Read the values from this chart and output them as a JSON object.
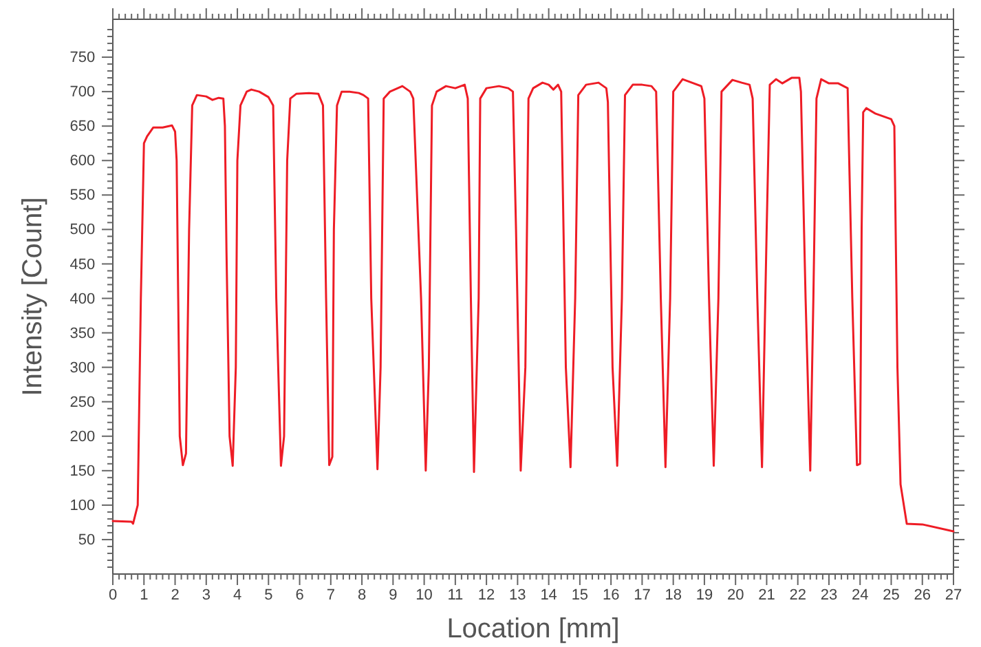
{
  "chart_data": {
    "type": "line",
    "xlabel": "Location [mm]",
    "ylabel": "Intensity [Count]",
    "xlim": [
      0,
      27
    ],
    "ylim": [
      0,
      805
    ],
    "marker": "none",
    "line_style": "solid",
    "xticks": [
      0,
      {
        "value": 0.2,
        "label": null
      },
      {
        "value": 0.4,
        "label": null
      },
      {
        "value": 0.6,
        "label": null
      },
      {
        "value": 0.8,
        "label": null
      },
      1,
      {
        "value": 1.2,
        "label": null
      },
      {
        "value": 1.4,
        "label": null
      },
      {
        "value": 1.6,
        "label": null
      },
      {
        "value": 1.8,
        "label": null
      },
      2,
      {
        "value": 2.2,
        "label": null
      },
      {
        "value": 2.4,
        "label": null
      },
      {
        "value": 2.6,
        "label": null
      },
      {
        "value": 2.8,
        "label": null
      },
      3,
      {
        "value": 3.2,
        "label": null
      },
      {
        "value": 3.4,
        "label": null
      },
      {
        "value": 3.6,
        "label": null
      },
      {
        "value": 3.8,
        "label": null
      },
      4,
      {
        "value": 4.2,
        "label": null
      },
      {
        "value": 4.4,
        "label": null
      },
      {
        "value": 4.6,
        "label": null
      },
      {
        "value": 4.8,
        "label": null
      },
      5,
      {
        "value": 5.2,
        "label": null
      },
      {
        "value": 5.4,
        "label": null
      },
      {
        "value": 5.6,
        "label": null
      },
      {
        "value": 5.8,
        "label": null
      },
      6,
      {
        "value": 6.2,
        "label": null
      },
      {
        "value": 6.4,
        "label": null
      },
      {
        "value": 6.6,
        "label": null
      },
      {
        "value": 6.8,
        "label": null
      },
      7,
      {
        "value": 7.2,
        "label": null
      },
      {
        "value": 7.4,
        "label": null
      },
      {
        "value": 7.6,
        "label": null
      },
      {
        "value": 7.8,
        "label": null
      },
      8,
      {
        "value": 8.2,
        "label": null
      },
      {
        "value": 8.4,
        "label": null
      },
      {
        "value": 8.6,
        "label": null
      },
      {
        "value": 8.8,
        "label": null
      },
      9,
      {
        "value": 9.2,
        "label": null
      },
      {
        "value": 9.4,
        "label": null
      },
      {
        "value": 9.6,
        "label": null
      },
      {
        "value": 9.8,
        "label": null
      },
      10,
      {
        "value": 10.2,
        "label": null
      },
      {
        "value": 10.4,
        "label": null
      },
      {
        "value": 10.6,
        "label": null
      },
      {
        "value": 10.8,
        "label": null
      },
      11,
      {
        "value": 11.2,
        "label": null
      },
      {
        "value": 11.4,
        "label": null
      },
      {
        "value": 11.6,
        "label": null
      },
      {
        "value": 11.8,
        "label": null
      },
      12,
      {
        "value": 12.2,
        "label": null
      },
      {
        "value": 12.4,
        "label": null
      },
      {
        "value": 12.6,
        "label": null
      },
      {
        "value": 12.8,
        "label": null
      },
      13,
      {
        "value": 13.2,
        "label": null
      },
      {
        "value": 13.4,
        "label": null
      },
      {
        "value": 13.6,
        "label": null
      },
      {
        "value": 13.8,
        "label": null
      },
      14,
      {
        "value": 14.2,
        "label": null
      },
      {
        "value": 14.4,
        "label": null
      },
      {
        "value": 14.6,
        "label": null
      },
      {
        "value": 14.8,
        "label": null
      },
      15,
      {
        "value": 15.2,
        "label": null
      },
      {
        "value": 15.4,
        "label": null
      },
      {
        "value": 15.6,
        "label": null
      },
      {
        "value": 15.8,
        "label": null
      },
      16,
      {
        "value": 16.2,
        "label": null
      },
      {
        "value": 16.4,
        "label": null
      },
      {
        "value": 16.6,
        "label": null
      },
      {
        "value": 16.8,
        "label": null
      },
      17,
      {
        "value": 17.2,
        "label": null
      },
      {
        "value": 17.4,
        "label": null
      },
      {
        "value": 17.6,
        "label": null
      },
      {
        "value": 17.8,
        "label": null
      },
      18,
      {
        "value": 18.2,
        "label": null
      },
      {
        "value": 18.4,
        "label": null
      },
      {
        "value": 18.6,
        "label": null
      },
      {
        "value": 18.8,
        "label": null
      },
      19,
      {
        "value": 19.2,
        "label": null
      },
      {
        "value": 19.4,
        "label": null
      },
      {
        "value": 19.6,
        "label": null
      },
      {
        "value": 19.8,
        "label": null
      },
      20,
      {
        "value": 20.2,
        "label": null
      },
      {
        "value": 20.4,
        "label": null
      },
      {
        "value": 20.6,
        "label": null
      },
      {
        "value": 20.8,
        "label": null
      },
      21,
      {
        "value": 21.2,
        "label": null
      },
      {
        "value": 21.4,
        "label": null
      },
      {
        "value": 21.6,
        "label": null
      },
      {
        "value": 21.8,
        "label": null
      },
      22,
      {
        "value": 22.2,
        "label": null
      },
      {
        "value": 22.4,
        "label": null
      },
      {
        "value": 22.6,
        "label": null
      },
      {
        "value": 22.8,
        "label": null
      },
      23,
      {
        "value": 23.2,
        "label": null
      },
      {
        "value": 23.4,
        "label": null
      },
      {
        "value": 23.6,
        "label": null
      },
      {
        "value": 23.8,
        "label": null
      },
      24,
      {
        "value": 24.2,
        "label": null
      },
      {
        "value": 24.4,
        "label": null
      },
      {
        "value": 24.6,
        "label": null
      },
      {
        "value": 24.8,
        "label": null
      },
      25,
      {
        "value": 25.2,
        "label": null
      },
      {
        "value": 25.4,
        "label": null
      },
      {
        "value": 25.6,
        "label": null
      },
      {
        "value": 25.8,
        "label": null
      },
      26,
      {
        "value": 26.2,
        "label": null
      },
      {
        "value": 26.4,
        "label": null
      },
      {
        "value": 26.6,
        "label": null
      },
      {
        "value": 26.8,
        "label": null
      },
      27
    ],
    "yticks": [
      {
        "value": 10,
        "label": null
      },
      {
        "value": 20,
        "label": null
      },
      {
        "value": 30,
        "label": null
      },
      {
        "value": 40,
        "label": null
      },
      50,
      {
        "value": 60,
        "label": null
      },
      {
        "value": 70,
        "label": null
      },
      {
        "value": 80,
        "label": null
      },
      {
        "value": 90,
        "label": null
      },
      100,
      {
        "value": 110,
        "label": null
      },
      {
        "value": 120,
        "label": null
      },
      {
        "value": 130,
        "label": null
      },
      {
        "value": 140,
        "label": null
      },
      150,
      {
        "value": 160,
        "label": null
      },
      {
        "value": 170,
        "label": null
      },
      {
        "value": 180,
        "label": null
      },
      {
        "value": 190,
        "label": null
      },
      200,
      {
        "value": 210,
        "label": null
      },
      {
        "value": 220,
        "label": null
      },
      {
        "value": 230,
        "label": null
      },
      {
        "value": 240,
        "label": null
      },
      250,
      {
        "value": 260,
        "label": null
      },
      {
        "value": 270,
        "label": null
      },
      {
        "value": 280,
        "label": null
      },
      {
        "value": 290,
        "label": null
      },
      300,
      {
        "value": 310,
        "label": null
      },
      {
        "value": 320,
        "label": null
      },
      {
        "value": 330,
        "label": null
      },
      {
        "value": 340,
        "label": null
      },
      350,
      {
        "value": 360,
        "label": null
      },
      {
        "value": 370,
        "label": null
      },
      {
        "value": 380,
        "label": null
      },
      {
        "value": 390,
        "label": null
      },
      400,
      {
        "value": 410,
        "label": null
      },
      {
        "value": 420,
        "label": null
      },
      {
        "value": 430,
        "label": null
      },
      {
        "value": 440,
        "label": null
      },
      450,
      {
        "value": 460,
        "label": null
      },
      {
        "value": 470,
        "label": null
      },
      {
        "value": 480,
        "label": null
      },
      {
        "value": 490,
        "label": null
      },
      500,
      {
        "value": 510,
        "label": null
      },
      {
        "value": 520,
        "label": null
      },
      {
        "value": 530,
        "label": null
      },
      {
        "value": 540,
        "label": null
      },
      550,
      {
        "value": 560,
        "label": null
      },
      {
        "value": 570,
        "label": null
      },
      {
        "value": 580,
        "label": null
      },
      {
        "value": 590,
        "label": null
      },
      600,
      {
        "value": 610,
        "label": null
      },
      {
        "value": 620,
        "label": null
      },
      {
        "value": 630,
        "label": null
      },
      {
        "value": 640,
        "label": null
      },
      650,
      {
        "value": 660,
        "label": null
      },
      {
        "value": 670,
        "label": null
      },
      {
        "value": 680,
        "label": null
      },
      {
        "value": 690,
        "label": null
      },
      700,
      {
        "value": 710,
        "label": null
      },
      {
        "value": 720,
        "label": null
      },
      {
        "value": 730,
        "label": null
      },
      {
        "value": 740,
        "label": null
      },
      750,
      {
        "value": 760,
        "label": null
      },
      {
        "value": 770,
        "label": null
      },
      {
        "value": 780,
        "label": null
      },
      {
        "value": 790,
        "label": null
      }
    ],
    "series": [
      {
        "color": "#ee1c25",
        "x": [
          0,
          0.6,
          0.65,
          0.8,
          0.9,
          1.0,
          1.1,
          1.3,
          1.6,
          1.9,
          2.0,
          2.05,
          2.1,
          2.15,
          2.25,
          2.35,
          2.45,
          2.55,
          2.7,
          3.0,
          3.2,
          3.4,
          3.55,
          3.6,
          3.65,
          3.75,
          3.85,
          3.95,
          4.0,
          4.1,
          4.3,
          4.45,
          4.7,
          5.0,
          5.15,
          5.25,
          5.4,
          5.5,
          5.6,
          5.7,
          5.9,
          6.3,
          6.6,
          6.75,
          6.85,
          6.95,
          7.05,
          7.1,
          7.2,
          7.35,
          7.6,
          7.9,
          8.05,
          8.2,
          8.3,
          8.5,
          8.6,
          8.7,
          8.9,
          9.3,
          9.55,
          9.65,
          9.9,
          10.05,
          10.15,
          10.25,
          10.4,
          10.7,
          11.0,
          11.3,
          11.4,
          11.5,
          11.6,
          11.75,
          11.8,
          12.0,
          12.4,
          12.7,
          12.85,
          12.95,
          13.1,
          13.25,
          13.35,
          13.5,
          13.8,
          14.0,
          14.15,
          14.3,
          14.4,
          14.55,
          14.7,
          14.85,
          14.95,
          15.2,
          15.6,
          15.85,
          15.9,
          16.05,
          16.2,
          16.35,
          16.45,
          16.7,
          17.0,
          17.3,
          17.45,
          17.6,
          17.75,
          17.9,
          18.0,
          18.3,
          18.6,
          18.9,
          19.0,
          19.15,
          19.3,
          19.45,
          19.55,
          19.9,
          20.2,
          20.45,
          20.55,
          20.7,
          20.85,
          21.0,
          21.1,
          21.3,
          21.5,
          21.8,
          22.05,
          22.1,
          22.25,
          22.4,
          22.5,
          22.6,
          22.75,
          23.0,
          23.3,
          23.6,
          23.75,
          23.9,
          24.0,
          24.05,
          24.1,
          24.2,
          24.5,
          25.0,
          25.1,
          25.2,
          25.3,
          25.5,
          26.0,
          27.0
        ],
        "values": [
          77,
          76,
          73,
          100,
          400,
          625,
          635,
          648,
          648,
          651,
          642,
          600,
          400,
          200,
          158,
          175,
          500,
          680,
          695,
          693,
          688,
          691,
          690,
          650,
          470,
          200,
          157,
          300,
          600,
          680,
          700,
          703,
          700,
          692,
          680,
          400,
          157,
          200,
          600,
          690,
          697,
          698,
          697,
          680,
          400,
          158,
          170,
          500,
          680,
          700,
          700,
          698,
          695,
          690,
          400,
          152,
          300,
          690,
          700,
          708,
          700,
          690,
          400,
          150,
          300,
          680,
          700,
          708,
          705,
          710,
          690,
          400,
          148,
          400,
          690,
          705,
          708,
          705,
          700,
          500,
          150,
          300,
          690,
          705,
          713,
          710,
          703,
          710,
          700,
          300,
          155,
          400,
          695,
          710,
          713,
          705,
          685,
          300,
          157,
          400,
          695,
          710,
          710,
          708,
          700,
          400,
          155,
          400,
          700,
          718,
          713,
          708,
          690,
          400,
          157,
          400,
          700,
          717,
          713,
          710,
          690,
          400,
          155,
          500,
          710,
          718,
          712,
          720,
          720,
          700,
          400,
          150,
          400,
          690,
          718,
          712,
          712,
          705,
          400,
          158,
          160,
          500,
          670,
          676,
          668,
          660,
          650,
          300,
          130,
          73,
          72,
          62
        ]
      }
    ]
  }
}
